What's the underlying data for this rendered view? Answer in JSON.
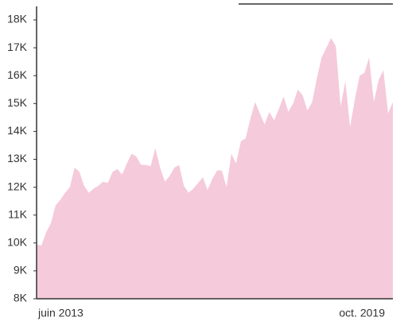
{
  "chart_data": {
    "type": "area",
    "color": "#f5cadb",
    "categories": [
      "juin 2013",
      null,
      null,
      null,
      null,
      null,
      null,
      null,
      null,
      null,
      null,
      null,
      null,
      null,
      null,
      null,
      null,
      null,
      null,
      null,
      null,
      null,
      null,
      null,
      null,
      null,
      null,
      null,
      null,
      null,
      null,
      null,
      null,
      null,
      null,
      null,
      null,
      null,
      null,
      null,
      null,
      null,
      null,
      null,
      null,
      null,
      null,
      null,
      null,
      null,
      null,
      null,
      null,
      null,
      null,
      null,
      null,
      null,
      null,
      null,
      null,
      null,
      null,
      null,
      null,
      null,
      null,
      null,
      null,
      null,
      null,
      null,
      null,
      null,
      null,
      "oct. 2019"
    ],
    "values": [
      9950,
      9900,
      10370,
      10700,
      11350,
      11550,
      11800,
      12000,
      12700,
      12550,
      12050,
      11800,
      11950,
      12050,
      12200,
      12150,
      12550,
      12650,
      12450,
      12850,
      13200,
      13100,
      12800,
      12800,
      12750,
      13400,
      12700,
      12200,
      12400,
      12700,
      12800,
      12050,
      11800,
      11950,
      12150,
      12350,
      11900,
      12300,
      12600,
      12600,
      12000,
      13200,
      12850,
      13650,
      13750,
      14450,
      15050,
      14650,
      14250,
      14700,
      14400,
      14800,
      15250,
      14700,
      15000,
      15500,
      15300,
      14750,
      15050,
      15900,
      16650,
      17000,
      17350,
      17050,
      14900,
      15800,
      14150,
      15150,
      16000,
      16100,
      16650,
      15050,
      15850,
      16200,
      14650,
      15050
    ],
    "ylim": [
      8000,
      18000
    ],
    "yticks": [
      {
        "value": 8000,
        "label": "8K"
      },
      {
        "value": 9000,
        "label": "9K"
      },
      {
        "value": 10000,
        "label": "10K"
      },
      {
        "value": 11000,
        "label": "11K"
      },
      {
        "value": 12000,
        "label": "12K"
      },
      {
        "value": 13000,
        "label": "13K"
      },
      {
        "value": 14000,
        "label": "14K"
      },
      {
        "value": 15000,
        "label": "15K"
      },
      {
        "value": 16000,
        "label": "16K"
      },
      {
        "value": 17000,
        "label": "17K"
      },
      {
        "value": 18000,
        "label": "18K"
      }
    ]
  }
}
